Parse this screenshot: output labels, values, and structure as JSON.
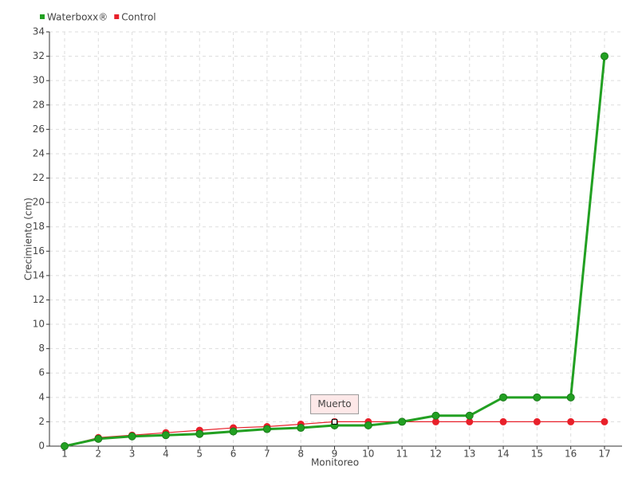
{
  "chart_data": {
    "type": "line",
    "x_label": "Monitoreo",
    "y_label": "Crecimiento (cm)",
    "categories": [
      "1",
      "2",
      "3",
      "4",
      "5",
      "6",
      "7",
      "8",
      "9",
      "10",
      "11",
      "12",
      "13",
      "14",
      "15",
      "16",
      "17"
    ],
    "series": [
      {
        "name": "Waterboxx®",
        "color": "#22a022",
        "values": [
          0,
          0.6,
          0.8,
          0.9,
          1.0,
          1.2,
          1.4,
          1.5,
          1.7,
          1.7,
          2.0,
          2.5,
          2.5,
          4.0,
          4.0,
          4.0,
          32
        ]
      },
      {
        "name": "Control",
        "color": "#e8202a",
        "values": [
          0,
          0.7,
          0.9,
          1.1,
          1.3,
          1.5,
          1.6,
          1.8,
          2.0,
          2.0,
          2.0,
          2.0,
          2.0,
          2.0,
          2.0,
          2.0,
          2.0
        ]
      }
    ],
    "annotations": [
      {
        "text": "Muerto",
        "x": "9",
        "y": 2.0
      }
    ],
    "ylim": [
      0,
      34
    ],
    "yticks": [
      0,
      2,
      4,
      6,
      8,
      10,
      12,
      14,
      16,
      18,
      20,
      22,
      24,
      26,
      28,
      30,
      32,
      34
    ],
    "grid": true,
    "legend": "top-left"
  }
}
